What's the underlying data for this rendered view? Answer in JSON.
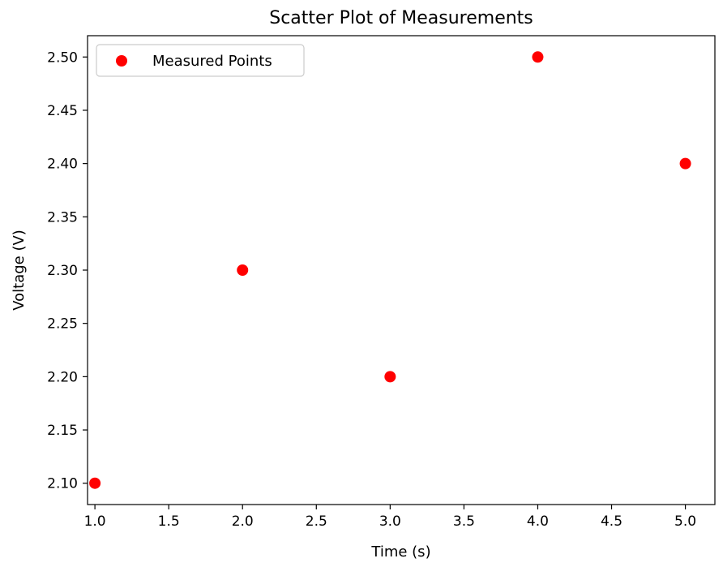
{
  "chart_data": {
    "type": "scatter",
    "title": "Scatter Plot of Measurements",
    "xlabel": "Time (s)",
    "ylabel": "Voltage (V)",
    "xlim": [
      0.95,
      5.2
    ],
    "ylim": [
      2.08,
      2.52
    ],
    "x_ticks": [
      "1.0",
      "1.5",
      "2.0",
      "2.5",
      "3.0",
      "3.5",
      "4.0",
      "4.5",
      "5.0"
    ],
    "y_ticks": [
      "2.10",
      "2.15",
      "2.20",
      "2.25",
      "2.30",
      "2.35",
      "2.40",
      "2.45",
      "2.50"
    ],
    "grid": false,
    "legend_position": "top-left",
    "series": [
      {
        "name": "Measured Points",
        "color": "#ff0000",
        "x": [
          1.0,
          2.0,
          3.0,
          4.0,
          5.0
        ],
        "y": [
          2.1,
          2.3,
          2.2,
          2.5,
          2.4
        ]
      }
    ]
  }
}
